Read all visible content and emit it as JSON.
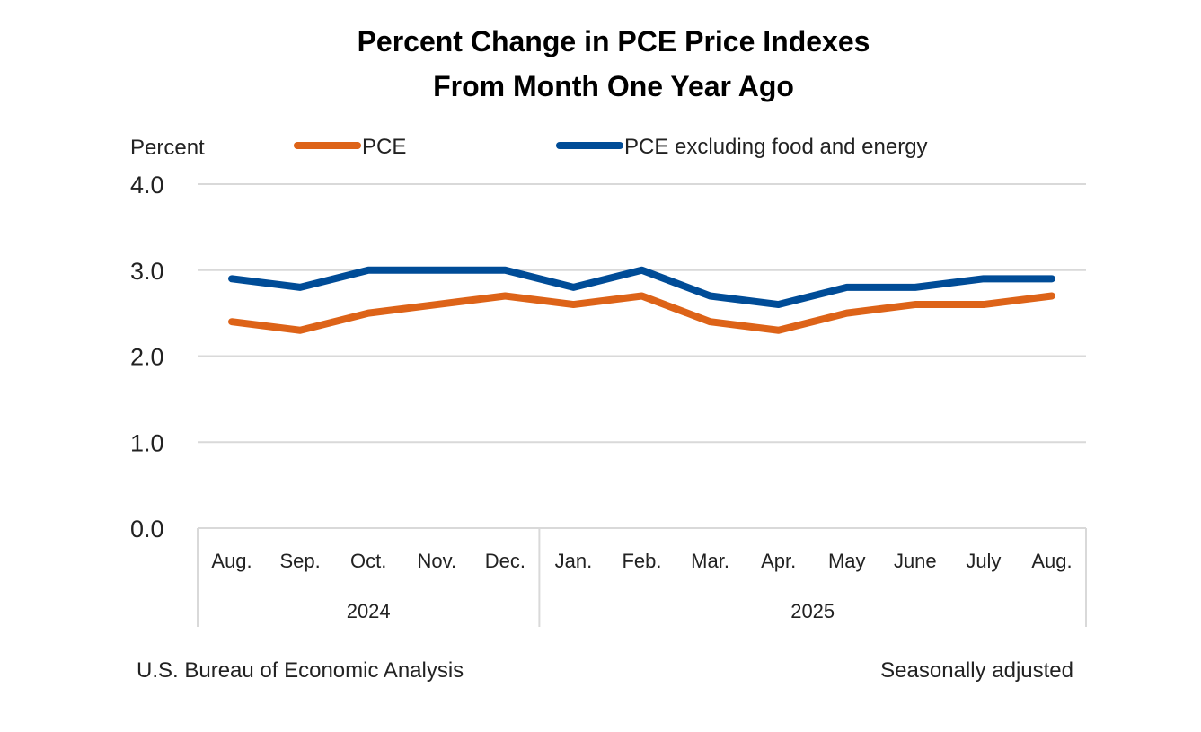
{
  "chart_data": {
    "type": "line",
    "title": [
      "Percent Change in PCE Price Indexes",
      "From Month One Year Ago"
    ],
    "ylabel": "Percent",
    "xlabel": "",
    "ylim": [
      0,
      4
    ],
    "yticks": [
      "0.0",
      "1.0",
      "2.0",
      "3.0",
      "4.0"
    ],
    "grid": true,
    "legend_position": "top",
    "categories": [
      "Aug.",
      "Sep.",
      "Oct.",
      "Nov.",
      "Dec.",
      "Jan.",
      "Feb.",
      "Mar.",
      "Apr.",
      "May",
      "June",
      "July",
      "Aug."
    ],
    "year_groups": [
      {
        "label": "2024",
        "count": 5
      },
      {
        "label": "2025",
        "count": 8
      }
    ],
    "series": [
      {
        "name": "PCE",
        "color": "#dd6318",
        "values": [
          2.4,
          2.3,
          2.5,
          2.6,
          2.7,
          2.6,
          2.7,
          2.4,
          2.3,
          2.5,
          2.6,
          2.6,
          2.7
        ]
      },
      {
        "name": "PCE excluding food and energy",
        "color": "#004c97",
        "values": [
          2.9,
          2.8,
          3.0,
          3.0,
          3.0,
          2.8,
          3.0,
          2.7,
          2.6,
          2.8,
          2.8,
          2.9,
          2.9
        ]
      }
    ],
    "footer_left": "U.S. Bureau of Economic Analysis",
    "footer_right": "Seasonally adjusted"
  }
}
